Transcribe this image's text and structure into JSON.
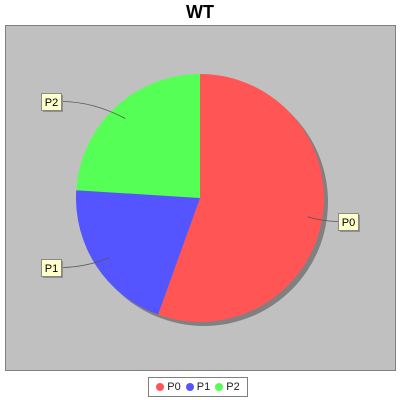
{
  "chart_data": {
    "type": "pie",
    "title": "WT",
    "categories": [
      "P0",
      "P1",
      "P2"
    ],
    "values": [
      55.5,
      20.5,
      24.0
    ],
    "colors": [
      "#ff5555",
      "#5555ff",
      "#55ff55"
    ],
    "start_angle_deg": 90,
    "direction": "clockwise",
    "legend_position": "bottom",
    "plot_background": "#c0c0c0",
    "label_background": "#ffffcc"
  }
}
